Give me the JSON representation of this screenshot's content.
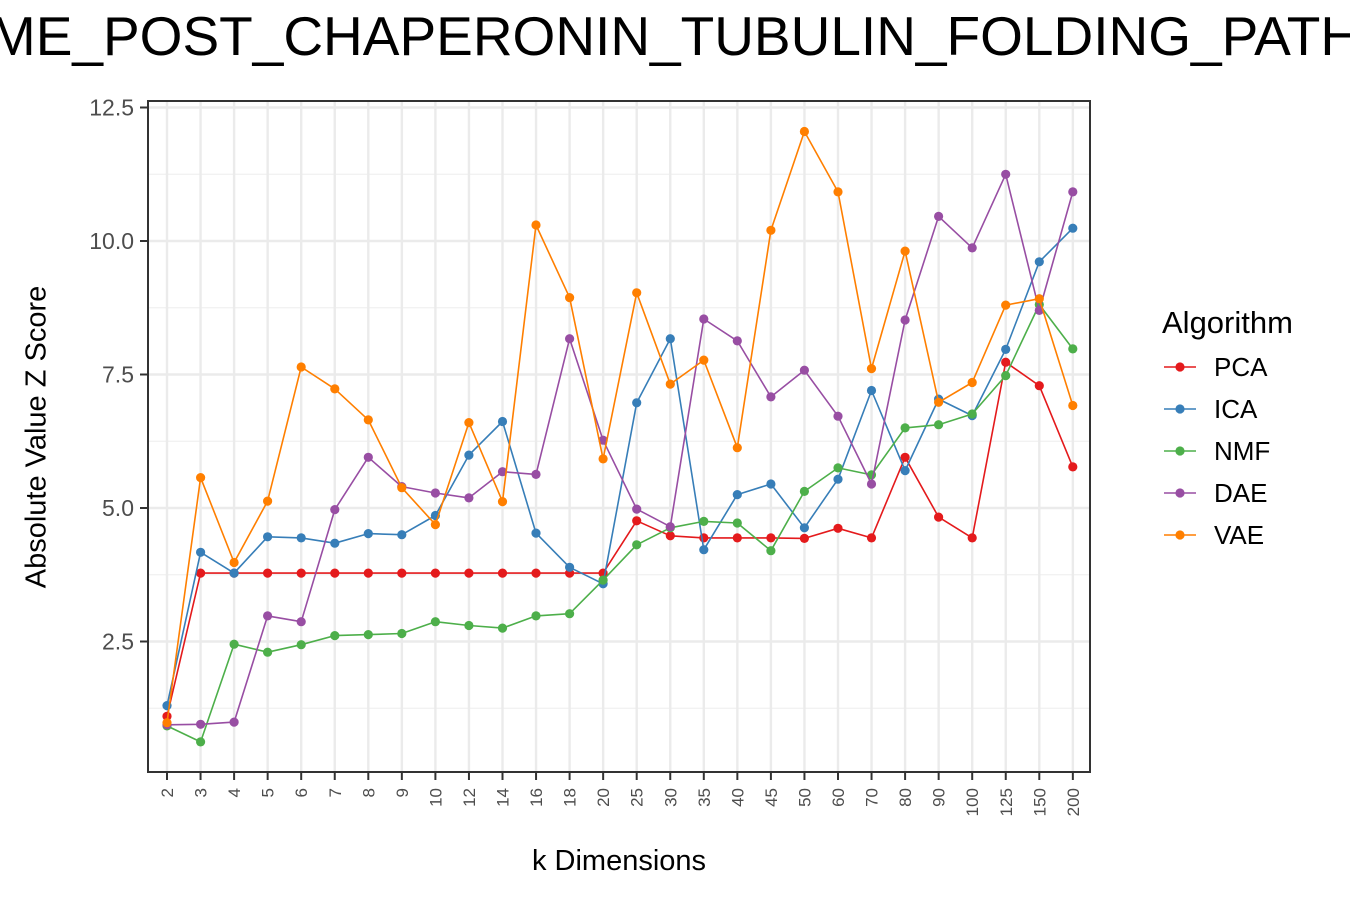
{
  "chart_data": {
    "type": "line",
    "title": "ME_POST_CHAPERONIN_TUBULIN_FOLDING_PATH",
    "xlabel": "k Dimensions",
    "ylabel": "Absolute Value Z Score",
    "categories": [
      "2",
      "3",
      "4",
      "5",
      "6",
      "7",
      "8",
      "9",
      "10",
      "12",
      "14",
      "16",
      "18",
      "20",
      "25",
      "30",
      "35",
      "40",
      "45",
      "50",
      "60",
      "70",
      "80",
      "90",
      "100",
      "125",
      "150",
      "200"
    ],
    "ylim": [
      0,
      12.5
    ],
    "yticks": [
      2.5,
      5.0,
      7.5,
      10.0,
      12.5
    ],
    "ytick_labels": [
      "2.5",
      "5.0",
      "7.5",
      "10.0",
      "12.5"
    ],
    "grid": true,
    "legend": {
      "title": "Algorithm",
      "position": "right"
    },
    "series": [
      {
        "name": "PCA",
        "color": "#e41a1c",
        "values": [
          1.1,
          3.78,
          3.78,
          3.78,
          3.78,
          3.78,
          3.78,
          3.78,
          3.78,
          3.78,
          3.78,
          3.78,
          3.78,
          3.78,
          4.76,
          4.48,
          4.44,
          4.44,
          4.44,
          4.43,
          4.62,
          4.44,
          5.95,
          4.83,
          4.44,
          7.73,
          7.29,
          5.77
        ]
      },
      {
        "name": "ICA",
        "color": "#377eb8",
        "values": [
          1.3,
          4.17,
          3.78,
          4.46,
          4.44,
          4.34,
          4.52,
          4.5,
          4.86,
          5.99,
          6.62,
          4.53,
          3.89,
          3.58,
          6.97,
          8.17,
          4.22,
          5.25,
          5.45,
          4.63,
          5.54,
          7.2,
          5.7,
          7.04,
          6.73,
          7.97,
          9.61,
          10.24
        ]
      },
      {
        "name": "NMF",
        "color": "#4daf4a",
        "values": [
          0.92,
          0.62,
          2.45,
          2.3,
          2.44,
          2.61,
          2.63,
          2.65,
          2.87,
          2.8,
          2.75,
          2.98,
          3.02,
          3.65,
          4.31,
          4.63,
          4.75,
          4.72,
          4.2,
          5.31,
          5.75,
          5.62,
          6.5,
          6.56,
          6.76,
          7.48,
          8.81,
          7.98
        ]
      },
      {
        "name": "DAE",
        "color": "#984ea3",
        "values": [
          0.94,
          0.95,
          0.99,
          2.98,
          2.87,
          4.97,
          5.95,
          5.4,
          5.28,
          5.19,
          5.68,
          5.63,
          8.17,
          6.27,
          4.98,
          4.65,
          8.54,
          8.13,
          7.08,
          7.58,
          6.72,
          5.45,
          8.52,
          10.46,
          9.87,
          11.25,
          8.7,
          10.92
        ]
      },
      {
        "name": "VAE",
        "color": "#ff7f00",
        "values": [
          0.98,
          5.57,
          3.98,
          5.13,
          7.64,
          7.23,
          6.65,
          5.38,
          4.69,
          6.6,
          5.12,
          10.3,
          8.94,
          5.92,
          9.03,
          7.32,
          7.77,
          6.13,
          10.2,
          12.05,
          10.92,
          7.61,
          9.81,
          6.98,
          7.35,
          8.8,
          8.92,
          6.92
        ]
      }
    ]
  }
}
